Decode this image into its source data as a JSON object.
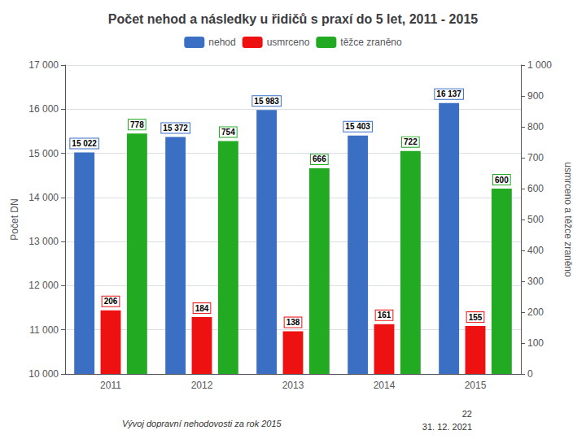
{
  "chart_data": {
    "type": "bar",
    "title": "Počet nehod a následky u řidičů s praxí do 5 let, 2011 - 2015",
    "categories": [
      "2011",
      "2012",
      "2013",
      "2014",
      "2015"
    ],
    "series": [
      {
        "name": "nehod",
        "color": "#3A6FC4",
        "values": [
          15022,
          15372,
          15983,
          15403,
          16137
        ],
        "value_labels": [
          "15 022",
          "15 372",
          "15 983",
          "15 403",
          "16 137"
        ]
      },
      {
        "name": "usmrceno",
        "color": "#EE1111",
        "axis": "y2",
        "values": [
          206,
          184,
          138,
          161,
          155
        ]
      },
      {
        "name": "těžce zraněno",
        "color": "#22AA22",
        "axis": "y2",
        "values": [
          778,
          754,
          666,
          722,
          600
        ]
      }
    ],
    "ylabel": "Počet DN",
    "y2label": "usmrceno a těžce zraněno",
    "ylim": [
      10000,
      17000
    ],
    "yticks": [
      {
        "value": 10000,
        "label": "10 000"
      },
      {
        "value": 11000,
        "label": "11 000"
      },
      {
        "value": 12000,
        "label": "12 000"
      },
      {
        "value": 13000,
        "label": "13 000"
      },
      {
        "value": 14000,
        "label": "14 000"
      },
      {
        "value": 15000,
        "label": "15 000"
      },
      {
        "value": 16000,
        "label": "16 000"
      },
      {
        "value": 17000,
        "label": "17 000"
      }
    ],
    "y2lim": [
      0,
      1000
    ],
    "y2ticks": [
      0,
      100,
      200,
      300,
      400,
      500,
      600,
      700,
      800,
      900,
      {
        "value": 1000,
        "label": "1 000"
      }
    ],
    "grid": true,
    "legend": "top",
    "data_labels": true,
    "annotations": [
      "Vývoj dopravní nehodovosti za rok 2015",
      "22",
      "31. 12. 2021"
    ]
  }
}
